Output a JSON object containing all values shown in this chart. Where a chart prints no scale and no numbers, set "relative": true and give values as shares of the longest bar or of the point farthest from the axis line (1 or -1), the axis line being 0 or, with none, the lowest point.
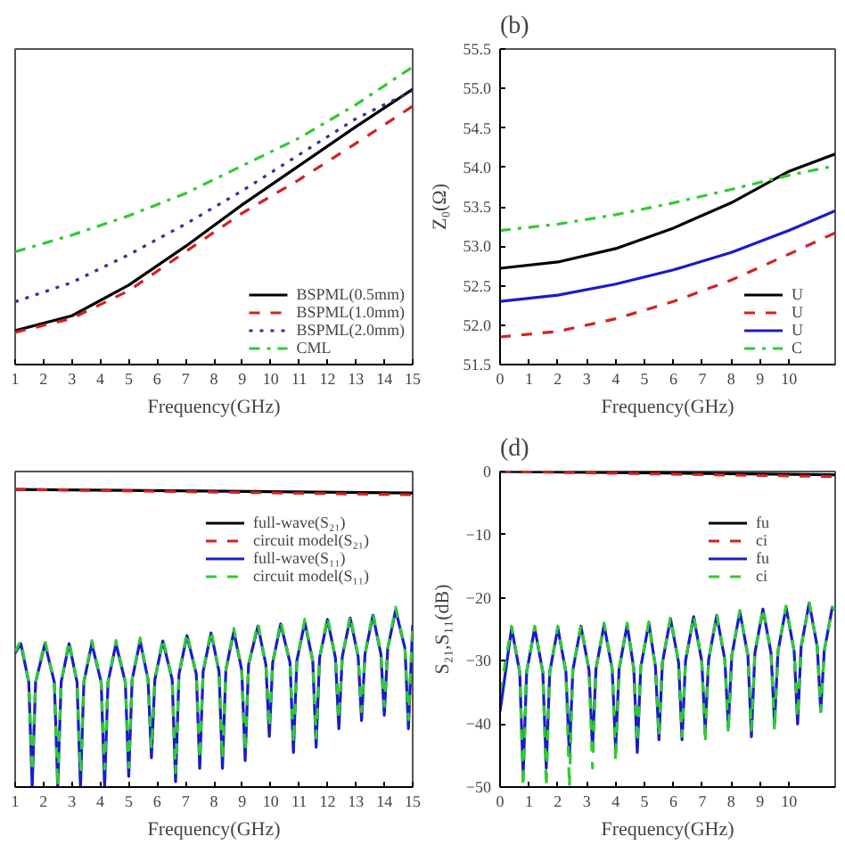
{
  "chart_data": [
    {
      "type": "line",
      "xlabel": "Frequency(GHz)",
      "xlim": [
        1,
        15
      ],
      "xticks": [
        1,
        2,
        3,
        4,
        5,
        6,
        7,
        8,
        9,
        10,
        11,
        12,
        13,
        14,
        15
      ],
      "relative": true,
      "legend": "bottom right",
      "series": [
        {
          "name": "BSPML(0.5mm)",
          "color": "#000000",
          "line_style": "solid",
          "x": [
            1,
            3,
            5,
            7,
            9,
            11,
            13,
            15
          ],
          "values": [
            0.114,
            0.164,
            0.267,
            0.397,
            0.537,
            0.668,
            0.799,
            0.925
          ]
        },
        {
          "name": "BSPML(1.0mm)",
          "color": "#d62020",
          "line_style": "dashed",
          "x": [
            1,
            3,
            5,
            7,
            9,
            11,
            13,
            15
          ],
          "values": [
            0.108,
            0.155,
            0.248,
            0.379,
            0.509,
            0.621,
            0.743,
            0.868
          ]
        },
        {
          "name": "BSPML(2.0mm)",
          "color": "#3030a0",
          "line_style": "dotted",
          "x": [
            1,
            3,
            5,
            7,
            9,
            11,
            13,
            15
          ],
          "values": [
            0.211,
            0.276,
            0.369,
            0.472,
            0.584,
            0.705,
            0.826,
            0.92
          ]
        },
        {
          "name": "CML",
          "color": "#2ecc2e",
          "line_style": "dashdot",
          "x": [
            1,
            3,
            5,
            7,
            9,
            11,
            13,
            15
          ],
          "values": [
            0.379,
            0.435,
            0.5,
            0.575,
            0.668,
            0.761,
            0.873,
            1
          ]
        }
      ]
    },
    {
      "type": "line",
      "title": "(b)",
      "xlabel": "Frequency(GHz)",
      "ylabel": "Z₀(Ω)",
      "xlim": [
        0,
        11.6
      ],
      "xticks": [
        0,
        1,
        2,
        3,
        4,
        5,
        6,
        7,
        8,
        9,
        10
      ],
      "ylim": [
        51.5,
        55.5
      ],
      "yticks": [
        {
          "value": 51.5,
          "label": "51.5"
        },
        {
          "value": 52,
          "label": "52.0"
        },
        {
          "value": 52.5,
          "label": "52.5"
        },
        {
          "value": 53,
          "label": "53.0"
        },
        {
          "value": 53.5,
          "label": "53.5"
        },
        {
          "value": 54,
          "label": "54.0"
        },
        {
          "value": 54.5,
          "label": "54.5"
        },
        {
          "value": 55,
          "label": "55.0"
        },
        {
          "value": 55.5,
          "label": "55.5"
        }
      ],
      "legend": "bottom right",
      "series": [
        {
          "name": "U",
          "color": "#000000",
          "line_style": "solid",
          "x": [
            0,
            2,
            4,
            6,
            8,
            10,
            11.6
          ],
          "values": [
            52.72,
            52.8,
            52.97,
            53.23,
            53.55,
            53.95,
            54.17
          ]
        },
        {
          "name": "U",
          "color": "#d62020",
          "line_style": "dashed",
          "x": [
            0,
            2,
            4,
            6,
            8,
            10,
            11.6
          ],
          "values": [
            51.85,
            51.92,
            52.08,
            52.3,
            52.57,
            52.9,
            53.17
          ]
        },
        {
          "name": "U",
          "color": "#1a1acc",
          "line_style": "solid",
          "x": [
            0,
            2,
            4,
            6,
            8,
            10,
            11.6
          ],
          "values": [
            52.3,
            52.38,
            52.52,
            52.7,
            52.92,
            53.2,
            53.45
          ]
        },
        {
          "name": "C",
          "color": "#2ecc2e",
          "line_style": "dashdot",
          "x": [
            0,
            2,
            4,
            6,
            8,
            10,
            11.6
          ],
          "values": [
            53.2,
            53.28,
            53.4,
            53.55,
            53.72,
            53.9,
            54.02
          ]
        }
      ]
    },
    {
      "type": "line",
      "xlabel": "Frequency(GHz)",
      "xlim": [
        1,
        15
      ],
      "xticks": [
        1,
        2,
        3,
        4,
        5,
        6,
        7,
        8,
        9,
        10,
        11,
        12,
        13,
        14,
        15
      ],
      "relative": true,
      "legend": "top right",
      "series": [
        {
          "name": "full-wave(S₂₁)",
          "color": "#000000",
          "line_style": "solid",
          "x": [
            1,
            15
          ],
          "values": [
            1,
            0.988
          ]
        },
        {
          "name": "circuit model(S₂₁)",
          "color": "#d62020",
          "line_style": "dashed",
          "x": [
            1,
            15
          ],
          "values": [
            1,
            0.982
          ]
        },
        {
          "name": "full-wave(S₁₁)",
          "color": "#1a1acc",
          "line_style": "solid",
          "x": [
            1.0,
            1.2,
            1.48,
            1.6,
            1.72,
            2.05,
            2.38,
            2.5,
            2.62,
            2.9,
            3.18,
            3.3,
            3.42,
            3.7,
            4.03,
            4.15,
            4.27,
            4.55,
            4.88,
            5.0,
            5.12,
            5.4,
            5.68,
            5.8,
            5.92,
            6.2,
            6.53,
            6.65,
            6.77,
            7.05,
            7.38,
            7.5,
            7.62,
            7.9,
            8.18,
            8.3,
            8.42,
            8.7,
            8.98,
            9.1,
            9.22,
            9.55,
            9.83,
            9.95,
            10.07,
            10.35,
            10.68,
            10.8,
            10.92,
            11.2,
            11.48,
            11.6,
            11.72,
            12.0,
            12.28,
            12.4,
            12.52,
            12.8,
            13.08,
            13.2,
            13.32,
            13.6,
            13.88,
            14.0,
            14.12,
            14.4,
            14.73,
            14.85,
            15.0
          ],
          "values": [
            0.45,
            0.482,
            0.352,
            0,
            0.352,
            0.482,
            0.352,
            0,
            0.352,
            0.482,
            0.352,
            0,
            0.352,
            0.482,
            0.352,
            0,
            0.352,
            0.482,
            0.352,
            0.036,
            0.361,
            0.491,
            0.361,
            0.098,
            0.361,
            0.491,
            0.361,
            0.018,
            0.379,
            0.509,
            0.379,
            0.063,
            0.388,
            0.518,
            0.388,
            0.063,
            0.393,
            0.523,
            0.393,
            0.089,
            0.411,
            0.541,
            0.411,
            0.17,
            0.418,
            0.548,
            0.418,
            0.116,
            0.424,
            0.554,
            0.424,
            0.134,
            0.433,
            0.563,
            0.433,
            0.196,
            0.438,
            0.568,
            0.438,
            0.223,
            0.447,
            0.577,
            0.447,
            0.241,
            0.465,
            0.595,
            0.465,
            0.196,
            0.545
          ]
        },
        {
          "name": "circuit model(S₁₁)",
          "color": "#2ecc2e",
          "line_style": "dashed",
          "x": [
            1.0,
            1.2,
            1.48,
            1.6,
            1.72,
            2.05,
            2.38,
            2.5,
            2.62,
            2.9,
            3.18,
            3.3,
            3.42,
            3.7,
            4.03,
            4.15,
            4.27,
            4.55,
            4.88,
            5.0,
            5.12,
            5.4,
            5.68,
            5.8,
            5.92,
            6.2,
            6.53,
            6.65,
            6.77,
            7.05,
            7.38,
            7.5,
            7.62,
            7.9,
            8.18,
            8.3,
            8.42,
            8.7,
            8.98,
            9.1,
            9.22,
            9.55,
            9.83,
            9.95,
            10.07,
            10.35,
            10.68,
            10.8,
            10.92,
            11.2,
            11.48,
            11.6,
            11.72,
            12.0,
            12.28,
            12.4,
            12.52,
            12.8,
            13.08,
            13.2,
            13.32,
            13.6,
            13.88,
            14.0,
            14.12,
            14.4,
            14.73,
            14.85,
            15.0
          ],
          "values": [
            0.455,
            0.492,
            0.352,
            0.05,
            0.352,
            0.492,
            0.352,
            0,
            0.352,
            0.492,
            0.352,
            0.05,
            0.352,
            0.492,
            0.352,
            0.06,
            0.352,
            0.492,
            0.352,
            0.066,
            0.361,
            0.501,
            0.361,
            0.128,
            0.361,
            0.501,
            0.361,
            0.048,
            0.379,
            0.519,
            0.379,
            0.093,
            0.388,
            0.528,
            0.388,
            0.093,
            0.393,
            0.533,
            0.393,
            0.119,
            0.411,
            0.551,
            0.411,
            0.2,
            0.418,
            0.558,
            0.418,
            0.146,
            0.424,
            0.564,
            0.424,
            0.164,
            0.433,
            0.573,
            0.433,
            0.226,
            0.438,
            0.578,
            0.438,
            0.253,
            0.447,
            0.587,
            0.447,
            0.271,
            0.465,
            0.605,
            0.465,
            0.226,
            0.545
          ]
        }
      ]
    },
    {
      "type": "line",
      "title": "(d)",
      "xlabel": "Frequency(GHz)",
      "ylabel": "S₂₁,S₁₁(dB)",
      "xlim": [
        0,
        11.6
      ],
      "xticks": [
        0,
        1,
        2,
        3,
        4,
        5,
        6,
        7,
        8,
        9,
        10
      ],
      "ylim": [
        -50,
        0
      ],
      "yticks": [
        -50,
        -40,
        -30,
        -20,
        -10,
        0
      ],
      "legend": "top right",
      "series": [
        {
          "name": "fu",
          "color": "#000000",
          "line_style": "solid",
          "x": [
            0,
            11.6
          ],
          "values": [
            0,
            -0.5
          ]
        },
        {
          "name": "ci",
          "color": "#d62020",
          "line_style": "dashed",
          "x": [
            0,
            11.6
          ],
          "values": [
            0,
            -0.8
          ]
        },
        {
          "name": "fu",
          "color": "#1a1acc",
          "line_style": "solid",
          "x": [
            0,
            0.4,
            0.68,
            0.8,
            0.92,
            1.2,
            1.48,
            1.6,
            1.72,
            2.0,
            2.28,
            2.4,
            2.52,
            2.8,
            3.08,
            3.2,
            3.32,
            3.6,
            3.88,
            4.0,
            4.12,
            4.4,
            4.63,
            4.75,
            4.87,
            5.15,
            5.38,
            5.5,
            5.62,
            5.9,
            6.18,
            6.3,
            6.42,
            6.7,
            6.98,
            7.1,
            7.22,
            7.5,
            7.78,
            7.9,
            8.02,
            8.3,
            8.58,
            8.7,
            8.82,
            9.1,
            9.38,
            9.5,
            9.62,
            9.9,
            10.18,
            10.3,
            10.42,
            10.7,
            10.98,
            11.1,
            11.22,
            11.5,
            11.6
          ],
          "values": [
            -38,
            -24.8,
            -31.8,
            -48,
            -31.8,
            -24.8,
            -31.8,
            -47,
            -31.8,
            -24.8,
            -31.8,
            -45,
            -31.5,
            -24.5,
            -31.5,
            -44,
            -31.3,
            -24.3,
            -31.3,
            -44,
            -31.3,
            -24.3,
            -31.3,
            -44.5,
            -31,
            -24,
            -31,
            -42.5,
            -30.3,
            -23.3,
            -30.3,
            -42.5,
            -30,
            -23,
            -30,
            -41,
            -29.8,
            -22.8,
            -29.8,
            -40.5,
            -29.2,
            -22.2,
            -29.2,
            -42,
            -28.8,
            -21.8,
            -28.8,
            -40,
            -28.5,
            -21.5,
            -28.5,
            -40,
            -27.8,
            -20.8,
            -27.8,
            -38,
            -28.5,
            -21.5,
            -21.8
          ]
        },
        {
          "name": "ci",
          "color": "#2ecc2e",
          "line_style": "dashed",
          "x": [
            0,
            0.4,
            0.68,
            0.8,
            0.92,
            1.2,
            1.48,
            1.6,
            1.72,
            2.0,
            2.28,
            2.4,
            2.52,
            2.8,
            3.08,
            3.2,
            3.32,
            3.6,
            3.88,
            4.0,
            4.12,
            4.4,
            4.63,
            4.75,
            4.87,
            5.15,
            5.38,
            5.5,
            5.62,
            5.9,
            6.18,
            6.3,
            6.42,
            6.7,
            6.98,
            7.1,
            7.22,
            7.5,
            7.78,
            7.9,
            8.02,
            8.3,
            8.58,
            8.7,
            8.82,
            9.1,
            9.38,
            9.5,
            9.62,
            9.9,
            10.18,
            10.3,
            10.42,
            10.7,
            10.98,
            11.1,
            11.22,
            11.5,
            11.6
          ],
          "values": [
            -35,
            -24.5,
            -31.8,
            -50,
            -31.8,
            -24.5,
            -31.8,
            -50,
            -31.8,
            -24.5,
            -31.8,
            -50,
            -31.5,
            -24.3,
            -31.5,
            -47,
            -31.3,
            -24,
            -31.3,
            -46,
            -31.3,
            -24,
            -31.3,
            -43,
            -31,
            -23.8,
            -31,
            -42,
            -30.3,
            -23,
            -30.3,
            -42,
            -30,
            -22.8,
            -30,
            -43,
            -29.8,
            -22.5,
            -29.8,
            -41.5,
            -29.2,
            -22,
            -29.2,
            -41,
            -28.8,
            -21.6,
            -28.8,
            -41,
            -28.5,
            -21.3,
            -28.5,
            -39,
            -27.8,
            -20.8,
            -27.8,
            -38,
            -28.5,
            -21.5,
            -21.8
          ]
        }
      ]
    }
  ]
}
